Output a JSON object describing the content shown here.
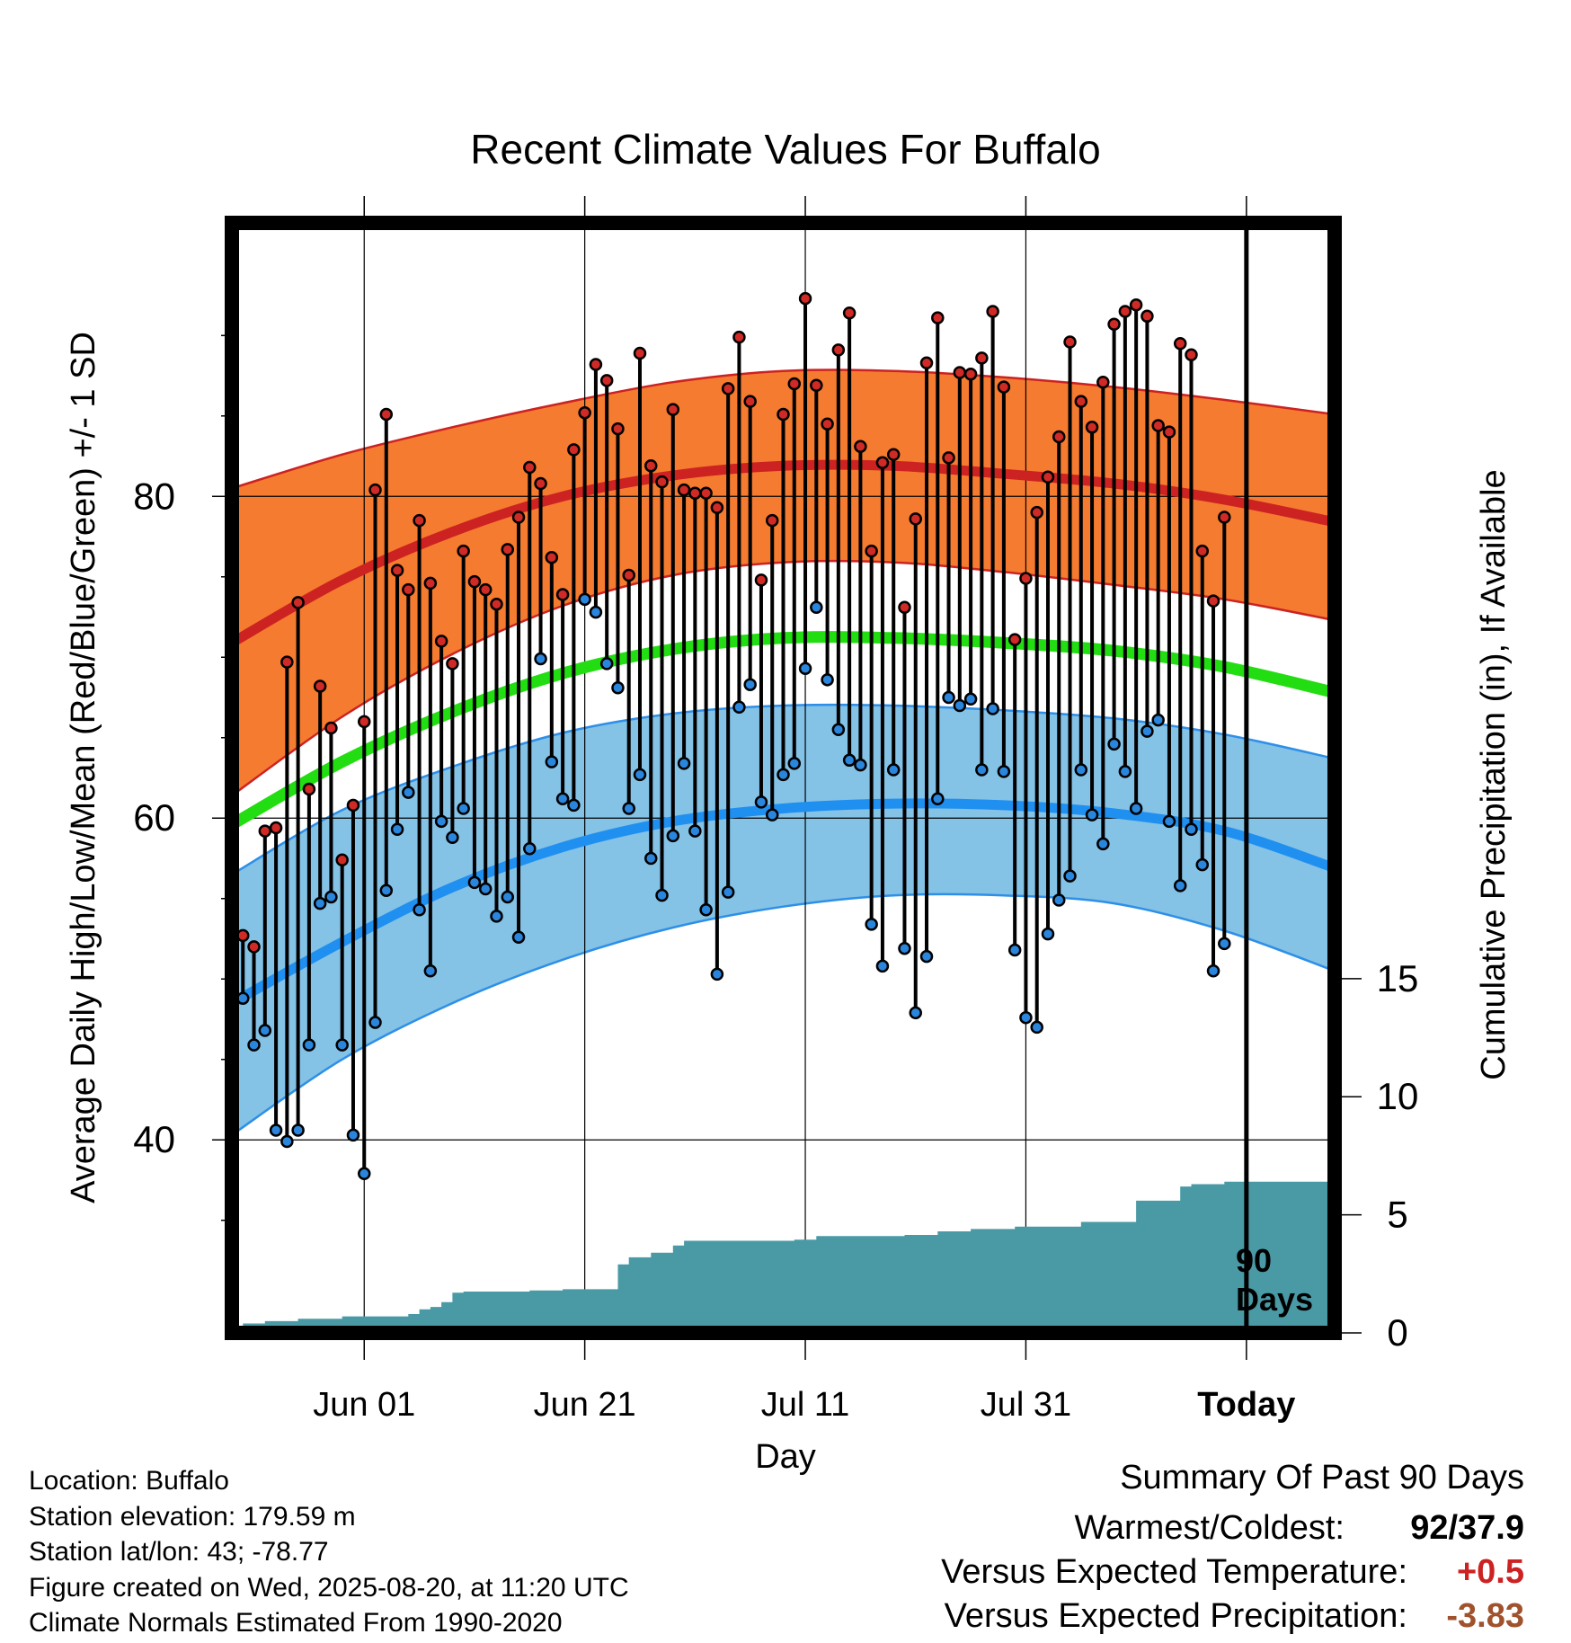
{
  "colors": {
    "high_band": "#f47b2f",
    "high_mean": "#cc2222",
    "low_band": "#84c2e6",
    "low_mean": "#1f8ff0",
    "low_band_edge": "#2d8fe8",
    "mean_line": "#22dd11",
    "precip_fill": "#4a9aa6",
    "high_dot": "#d02a26",
    "low_dot": "#2a86dc",
    "positive_value": "#cc2222",
    "negative_value": "#a0522d"
  },
  "chart_data": {
    "type": "line",
    "title": "Recent Climate Values For Buffalo",
    "xlabel": "Day",
    "ylabel": "Average Daily High/Low/Mean (Red/Blue/Green) +/- 1 SD",
    "y2label": "Cumulative Precipitation (in), If Available",
    "xlim": [
      "2025-05-20",
      "2025-08-28"
    ],
    "ylim": [
      28,
      97
    ],
    "y2lim": [
      0,
      47
    ],
    "yticks": [
      40,
      60,
      80
    ],
    "y2ticks": [
      0,
      5,
      10,
      15
    ],
    "xticks": [
      {
        "date": "2025-06-01",
        "label": "Jun 01"
      },
      {
        "date": "2025-06-21",
        "label": "Jun 21"
      },
      {
        "date": "2025-07-11",
        "label": "Jul 11"
      },
      {
        "date": "2025-07-31",
        "label": "Jul 31"
      },
      {
        "date": "2025-08-20",
        "label": "Today"
      }
    ],
    "today": "2025-08-20",
    "today_label": [
      "90",
      "Days"
    ],
    "normals_x": [
      "2025-05-20",
      "2025-05-30",
      "2025-06-09",
      "2025-06-19",
      "2025-06-29",
      "2025-07-09",
      "2025-07-19",
      "2025-07-29",
      "2025-08-08",
      "2025-08-18",
      "2025-08-28"
    ],
    "normal_high_upper": [
      80.5,
      82.6,
      84.3,
      85.8,
      87.1,
      87.8,
      87.8,
      87.4,
      86.8,
      86.0,
      85.1
    ],
    "normal_high_mean": [
      70.9,
      74.8,
      77.8,
      80.0,
      81.3,
      81.9,
      81.9,
      81.4,
      80.8,
      79.8,
      78.4
    ],
    "normal_high_lower": [
      61.4,
      66.3,
      70.2,
      73.2,
      75.1,
      75.9,
      75.9,
      75.3,
      74.5,
      73.6,
      72.3
    ],
    "normal_mean": [
      59.6,
      63.5,
      66.6,
      69.0,
      70.5,
      71.2,
      71.2,
      70.9,
      70.4,
      69.4,
      67.8
    ],
    "normal_low_upper": [
      56.5,
      60.5,
      63.2,
      65.3,
      66.5,
      67.0,
      67.0,
      66.7,
      66.2,
      65.2,
      63.7
    ],
    "normal_low_mean": [
      48.5,
      52.3,
      55.7,
      58.2,
      59.8,
      60.6,
      60.9,
      60.8,
      60.3,
      59.2,
      56.9
    ],
    "normal_low_lower": [
      40.3,
      45.0,
      48.5,
      51.2,
      53.2,
      54.5,
      55.2,
      55.2,
      54.7,
      53.0,
      50.5
    ],
    "daily_dates_start": "2025-05-21",
    "daily_high": [
      52.7,
      52.0,
      59.2,
      59.4,
      69.7,
      73.4,
      61.8,
      68.2,
      65.6,
      57.4,
      60.8,
      66.0,
      80.4,
      85.1,
      75.4,
      74.2,
      78.5,
      74.6,
      71.0,
      69.6,
      76.6,
      74.7,
      74.2,
      73.3,
      76.7,
      78.7,
      81.8,
      80.8,
      76.2,
      73.9,
      82.9,
      85.2,
      88.2,
      87.2,
      84.2,
      75.1,
      88.9,
      81.9,
      80.9,
      85.4,
      80.4,
      80.2,
      80.2,
      79.3,
      86.7,
      89.9,
      85.9,
      74.8,
      78.5,
      85.1,
      87.0,
      92.3,
      86.9,
      84.5,
      89.1,
      91.4,
      83.1,
      76.6,
      82.1,
      82.6,
      73.1,
      78.6,
      88.3,
      91.1,
      82.4,
      87.7,
      87.6,
      88.6,
      91.5,
      86.8,
      71.1,
      74.9,
      79.0,
      81.2,
      83.7,
      89.6,
      85.9,
      84.3,
      87.1,
      90.7,
      91.5,
      91.9,
      91.2,
      84.4,
      84.0,
      89.5,
      88.8,
      76.6,
      73.5,
      78.7
    ],
    "daily_low": [
      48.8,
      45.9,
      46.8,
      40.6,
      39.9,
      40.6,
      45.9,
      54.7,
      55.1,
      45.9,
      40.3,
      37.9,
      47.3,
      55.5,
      59.3,
      61.6,
      54.3,
      50.5,
      59.8,
      58.8,
      60.6,
      56.0,
      55.6,
      53.9,
      55.1,
      52.6,
      58.1,
      69.9,
      63.5,
      61.2,
      60.8,
      73.6,
      72.8,
      69.6,
      68.1,
      60.6,
      62.7,
      57.5,
      55.2,
      58.9,
      63.4,
      59.2,
      54.3,
      50.3,
      55.4,
      66.9,
      68.3,
      61.0,
      60.2,
      62.7,
      63.4,
      69.3,
      73.1,
      68.6,
      65.5,
      63.6,
      63.3,
      53.4,
      50.8,
      63.0,
      51.9,
      47.9,
      51.4,
      61.2,
      67.5,
      67.0,
      67.4,
      63.0,
      66.8,
      62.9,
      51.8,
      47.6,
      47.0,
      52.8,
      54.9,
      56.4,
      63.0,
      60.2,
      58.4,
      64.6,
      62.9,
      60.6,
      65.4,
      66.1,
      59.8,
      55.8,
      59.3,
      57.1,
      50.5,
      52.2
    ],
    "precip_steps": [
      {
        "date": "2025-05-20",
        "value": 0.2
      },
      {
        "date": "2025-05-21",
        "value": 0.4
      },
      {
        "date": "2025-05-23",
        "value": 0.5
      },
      {
        "date": "2025-05-26",
        "value": 0.6
      },
      {
        "date": "2025-05-30",
        "value": 0.7
      },
      {
        "date": "2025-06-05",
        "value": 0.8
      },
      {
        "date": "2025-06-06",
        "value": 1.0
      },
      {
        "date": "2025-06-07",
        "value": 1.1
      },
      {
        "date": "2025-06-08",
        "value": 1.3
      },
      {
        "date": "2025-06-09",
        "value": 1.7
      },
      {
        "date": "2025-06-10",
        "value": 1.75
      },
      {
        "date": "2025-06-16",
        "value": 1.8
      },
      {
        "date": "2025-06-19",
        "value": 1.85
      },
      {
        "date": "2025-06-24",
        "value": 2.9
      },
      {
        "date": "2025-06-25",
        "value": 3.2
      },
      {
        "date": "2025-06-27",
        "value": 3.4
      },
      {
        "date": "2025-06-29",
        "value": 3.7
      },
      {
        "date": "2025-06-30",
        "value": 3.9
      },
      {
        "date": "2025-07-10",
        "value": 3.95
      },
      {
        "date": "2025-07-12",
        "value": 4.1
      },
      {
        "date": "2025-07-20",
        "value": 4.15
      },
      {
        "date": "2025-07-23",
        "value": 4.3
      },
      {
        "date": "2025-07-26",
        "value": 4.4
      },
      {
        "date": "2025-07-30",
        "value": 4.5
      },
      {
        "date": "2025-08-05",
        "value": 4.7
      },
      {
        "date": "2025-08-10",
        "value": 5.6
      },
      {
        "date": "2025-08-14",
        "value": 6.2
      },
      {
        "date": "2025-08-15",
        "value": 6.3
      },
      {
        "date": "2025-08-18",
        "value": 6.4
      },
      {
        "date": "2025-08-28",
        "value": 6.4
      }
    ]
  },
  "info": {
    "location": "Location: Buffalo",
    "elevation": "Station elevation: 179.59 m",
    "latlon": "Station lat/lon: 43; -78.77",
    "created": "Figure created on Wed, 2025-08-20, at 11:20 UTC",
    "normals": "Climate Normals Estimated From 1990-2020"
  },
  "summary": {
    "title": "Summary Of Past 90 Days",
    "warmest_label": "Warmest/Coldest:",
    "warmest_value": "92/37.9",
    "temp_label": "Versus Expected Temperature:",
    "temp_value": "+0.5",
    "precip_label": "Versus Expected Precipitation:",
    "precip_value": "-3.83"
  }
}
